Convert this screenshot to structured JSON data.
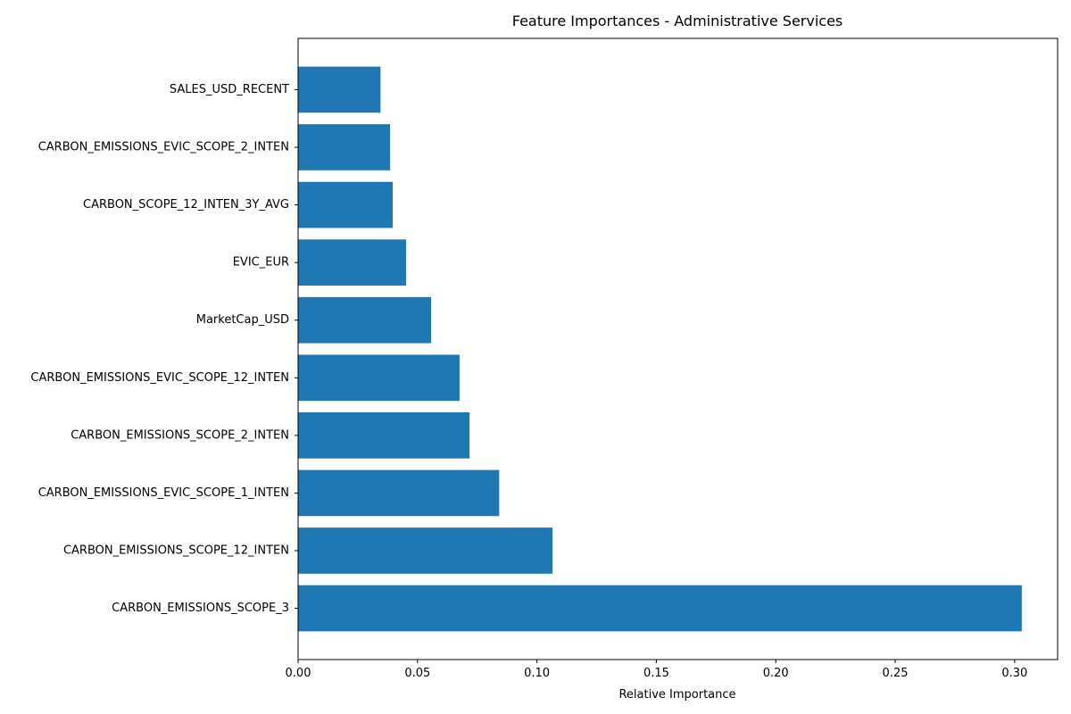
{
  "chart_data": {
    "type": "bar",
    "orientation": "horizontal",
    "title": "Feature Importances - Administrative Services",
    "xlabel": "Relative Importance",
    "ylabel": "",
    "xlim": [
      0,
      0.318
    ],
    "xticks": [
      "0.00",
      "0.05",
      "0.10",
      "0.15",
      "0.20",
      "0.25",
      "0.30"
    ],
    "categories": [
      "CARBON_EMISSIONS_SCOPE_3",
      "CARBON_EMISSIONS_SCOPE_12_INTEN",
      "CARBON_EMISSIONS_EVIC_SCOPE_1_INTEN",
      "CARBON_EMISSIONS_SCOPE_2_INTEN",
      "CARBON_EMISSIONS_EVIC_SCOPE_12_INTEN",
      "MarketCap_USD",
      "EVIC_EUR",
      "CARBON_SCOPE_12_INTEN_3Y_AVG",
      "CARBON_EMISSIONS_EVIC_SCOPE_2_INTEN",
      "SALES_USD_RECENT"
    ],
    "values": [
      0.303,
      0.1065,
      0.0842,
      0.0718,
      0.0676,
      0.0557,
      0.0452,
      0.0396,
      0.0385,
      0.0345
    ],
    "color": "#1f77b4",
    "grid": false,
    "legend": "none"
  }
}
